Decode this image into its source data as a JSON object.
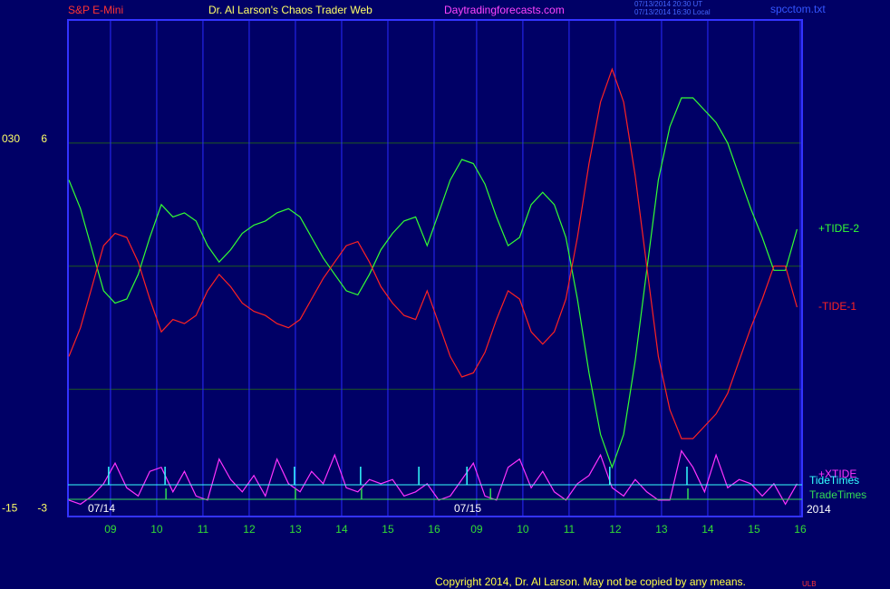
{
  "chart_data": {
    "type": "line",
    "header": {
      "left": "S&P E-Mini",
      "center": "Dr. Al Larson's Chaos Trader Web",
      "site": "Daytradingforecasts.com",
      "stamp_ut": "07/13/2014 20:30 UT",
      "stamp_local": "07/13/2014 16:30 Local",
      "file": "spcctom.txt"
    },
    "dates": [
      "07/14",
      "07/15"
    ],
    "year": "2014",
    "copyright": "Copyright 2014, Dr. Al Larson. May not be copied by any means.",
    "mark": "ULB",
    "x": [
      -0.9,
      -0.65,
      -0.4,
      -0.15,
      0.1,
      0.35,
      0.6,
      0.85,
      1.1,
      1.35,
      1.6,
      1.85,
      2.1,
      2.35,
      2.6,
      2.85,
      3.1,
      3.35,
      3.6,
      3.85,
      4.1,
      4.35,
      4.6,
      4.85,
      5.1,
      5.35,
      5.6,
      5.85,
      6.1,
      6.35,
      6.6,
      6.85,
      7.1,
      7.35,
      7.6,
      7.85,
      8.1,
      8.35,
      8.6,
      8.85,
      9.1,
      9.35,
      9.6,
      9.85,
      10.1,
      10.35,
      10.6,
      10.85,
      11.1,
      11.35,
      11.6,
      11.85,
      12.1,
      12.35,
      12.6,
      12.85,
      13.1,
      13.35,
      13.6,
      13.85,
      14.1,
      14.35,
      14.6,
      14.85
    ],
    "series": [
      {
        "name": "+TIDE-2",
        "color": "#33ff33",
        "values": [
          5.1,
          4.4,
          3.4,
          2.4,
          2.1,
          2.2,
          2.8,
          3.7,
          4.5,
          4.2,
          4.3,
          4.1,
          3.5,
          3.1,
          3.4,
          3.8,
          4.0,
          4.1,
          4.3,
          4.4,
          4.2,
          3.7,
          3.2,
          2.8,
          2.4,
          2.3,
          2.8,
          3.4,
          3.8,
          4.1,
          4.2,
          3.5,
          4.3,
          5.1,
          5.6,
          5.5,
          5.0,
          4.2,
          3.5,
          3.7,
          4.5,
          4.8,
          4.5,
          3.7,
          2.2,
          0.4,
          -1.1,
          -1.9,
          -1.1,
          0.7,
          2.9,
          5.1,
          6.4,
          7.1,
          7.1,
          6.8,
          6.5,
          6.0,
          5.2,
          4.4,
          3.7,
          2.9,
          2.9,
          3.9
        ]
      },
      {
        "name": "-TIDE-1",
        "color": "#ff2222",
        "values": [
          0.8,
          1.5,
          2.5,
          3.5,
          3.8,
          3.7,
          3.1,
          2.2,
          1.4,
          1.7,
          1.6,
          1.8,
          2.4,
          2.8,
          2.5,
          2.1,
          1.9,
          1.8,
          1.6,
          1.5,
          1.7,
          2.2,
          2.7,
          3.1,
          3.5,
          3.6,
          3.1,
          2.5,
          2.1,
          1.8,
          1.7,
          2.4,
          1.6,
          0.8,
          0.3,
          0.4,
          0.9,
          1.7,
          2.4,
          2.2,
          1.4,
          1.1,
          1.4,
          2.2,
          3.7,
          5.5,
          7.0,
          7.8,
          7.0,
          5.2,
          3.0,
          0.8,
          -0.5,
          -1.2,
          -1.2,
          -0.9,
          -0.6,
          -0.1,
          0.7,
          1.5,
          2.2,
          3.0,
          3.0,
          2.0
        ]
      },
      {
        "name": "+XTIDE",
        "color": "#ff33ff",
        "values": [
          -2.7,
          -2.8,
          -2.6,
          -2.3,
          -1.8,
          -2.4,
          -2.6,
          -2.0,
          -1.9,
          -2.5,
          -2.0,
          -2.6,
          -2.7,
          -1.7,
          -2.2,
          -2.5,
          -2.1,
          -2.6,
          -1.7,
          -2.3,
          -2.5,
          -2.0,
          -2.3,
          -1.6,
          -2.4,
          -2.5,
          -2.2,
          -2.3,
          -2.2,
          -2.6,
          -2.5,
          -2.3,
          -2.7,
          -2.6,
          -2.2,
          -1.8,
          -2.6,
          -2.7,
          -1.9,
          -1.7,
          -2.4,
          -2.0,
          -2.5,
          -2.7,
          -2.3,
          -2.1,
          -1.6,
          -2.4,
          -2.6,
          -2.2,
          -2.5,
          -2.7,
          -2.7,
          -1.5,
          -1.9,
          -2.5,
          -1.6,
          -2.4,
          -2.2,
          -2.3,
          -2.6,
          -2.3,
          -2.8,
          -2.3
        ]
      }
    ],
    "tide_times": {
      "name": "TideTimes",
      "color": "#33ffff",
      "x": [
        -0.04,
        1.18,
        3.98,
        5.41,
        6.67,
        7.71,
        10.8,
        12.47
      ]
    },
    "trade_times": {
      "name": "TradeTimes",
      "color": "#33dd55",
      "x": [
        1.2,
        4.0,
        5.43,
        8.22,
        12.49
      ]
    },
    "xlim": [
      -0.92,
      14.96
    ],
    "xticks": [
      {
        "value": 0,
        "label": "09"
      },
      {
        "value": 1,
        "label": "10"
      },
      {
        "value": 2,
        "label": "11"
      },
      {
        "value": 3,
        "label": "12"
      },
      {
        "value": 4,
        "label": "13"
      },
      {
        "value": 5,
        "label": "14"
      },
      {
        "value": 6,
        "label": "15"
      },
      {
        "value": 7,
        "label": "16"
      },
      {
        "value": 7.92,
        "label": "09"
      },
      {
        "value": 8.92,
        "label": "10"
      },
      {
        "value": 9.92,
        "label": "11"
      },
      {
        "value": 10.92,
        "label": "12"
      },
      {
        "value": 11.92,
        "label": "13"
      },
      {
        "value": 12.92,
        "label": "14"
      },
      {
        "value": 13.92,
        "label": "15"
      },
      {
        "value": 14.92,
        "label": "16"
      }
    ],
    "ylim": [
      -3.1,
      9
    ],
    "yticks": [
      6,
      -3
    ],
    "ygrid": [
      0,
      3,
      6
    ],
    "y2lim": [
      -15.5,
      45
    ],
    "y2ticks": [
      {
        "value": 30,
        "label": "030"
      },
      -15
    ]
  }
}
